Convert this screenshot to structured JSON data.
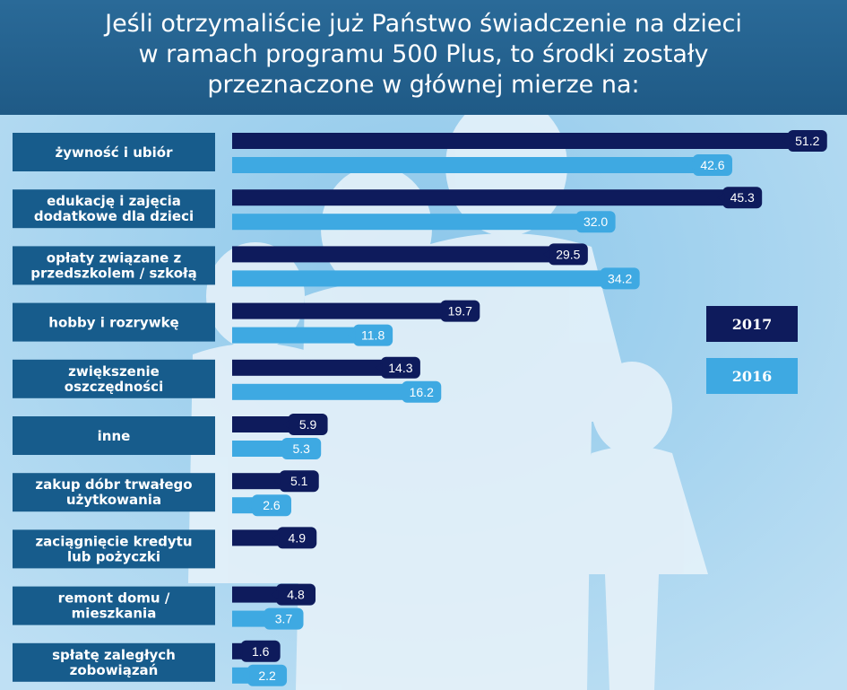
{
  "title_lines": [
    "Jeśli otrzymaliście już Państwo świadczenie na dzieci",
    "w ramach programu 500 Plus, to środki zostały",
    "przeznaczone w głównej mierze na:"
  ],
  "colors": {
    "series_2017": "#0e1b5c",
    "series_2016": "#3ea9e2",
    "category_box": "#175c8c",
    "background": "#2a6a98"
  },
  "chart_data": {
    "type": "bar",
    "orientation": "horizontal",
    "categories": [
      [
        "żywność i ubiór"
      ],
      [
        "edukację i zajęcia",
        "dodatkowe dla dzieci"
      ],
      [
        "opłaty związane z",
        "przedszkolem / szkołą"
      ],
      [
        "hobby i rozrywkę"
      ],
      [
        "zwiększenie",
        "oszczędności"
      ],
      [
        "inne"
      ],
      [
        "zakup dóbr trwałego",
        "użytkowania"
      ],
      [
        "zaciągnięcie kredytu",
        "lub pożyczki"
      ],
      [
        "remont domu /",
        "mieszkania"
      ],
      [
        "spłatę zaległych",
        "zobowiązań"
      ]
    ],
    "series": [
      {
        "name": "2017",
        "values": [
          51.2,
          45.3,
          29.5,
          19.7,
          14.3,
          5.9,
          5.1,
          4.9,
          4.8,
          1.6
        ],
        "labels": [
          "51.2",
          "45.3",
          "29.5",
          "19.7",
          "14.3",
          "5.9",
          "5.1",
          "4.9",
          "4.8",
          "1.6"
        ]
      },
      {
        "name": "2016",
        "values": [
          42.6,
          32.0,
          34.2,
          11.8,
          16.2,
          5.3,
          2.6,
          null,
          3.7,
          2.2
        ],
        "labels": [
          "42.6",
          "32.0",
          "34.2",
          "11.8",
          "16.2",
          "5.3",
          "2.6",
          null,
          "3.7",
          "2.2"
        ]
      }
    ],
    "legend": [
      "2017",
      "2016"
    ],
    "legend_position": "right"
  }
}
